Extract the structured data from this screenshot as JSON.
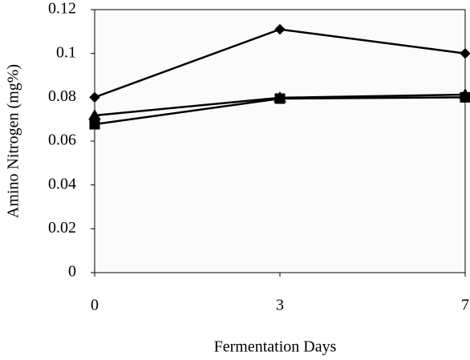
{
  "chart_data": {
    "type": "line",
    "x_label": "Fermentation Days",
    "y_label": "Amino Nitrogen (mg%)",
    "categories": [
      "0",
      "3",
      "7"
    ],
    "series": [
      {
        "color": "#000000",
        "marker": "diamond",
        "values": [
          0.08,
          0.111,
          0.1
        ]
      },
      {
        "color": "#000000",
        "marker": "square",
        "values": [
          0.0677,
          0.0794,
          0.08
        ]
      },
      {
        "color": "#000000",
        "marker": "triangle",
        "values": [
          0.0717,
          0.0798,
          0.0812
        ]
      }
    ],
    "ylim": [
      0,
      0.12
    ],
    "yticks": [
      0,
      0.02,
      0.04,
      0.06,
      0.08,
      0.1,
      0.12
    ],
    "grid": false
  }
}
